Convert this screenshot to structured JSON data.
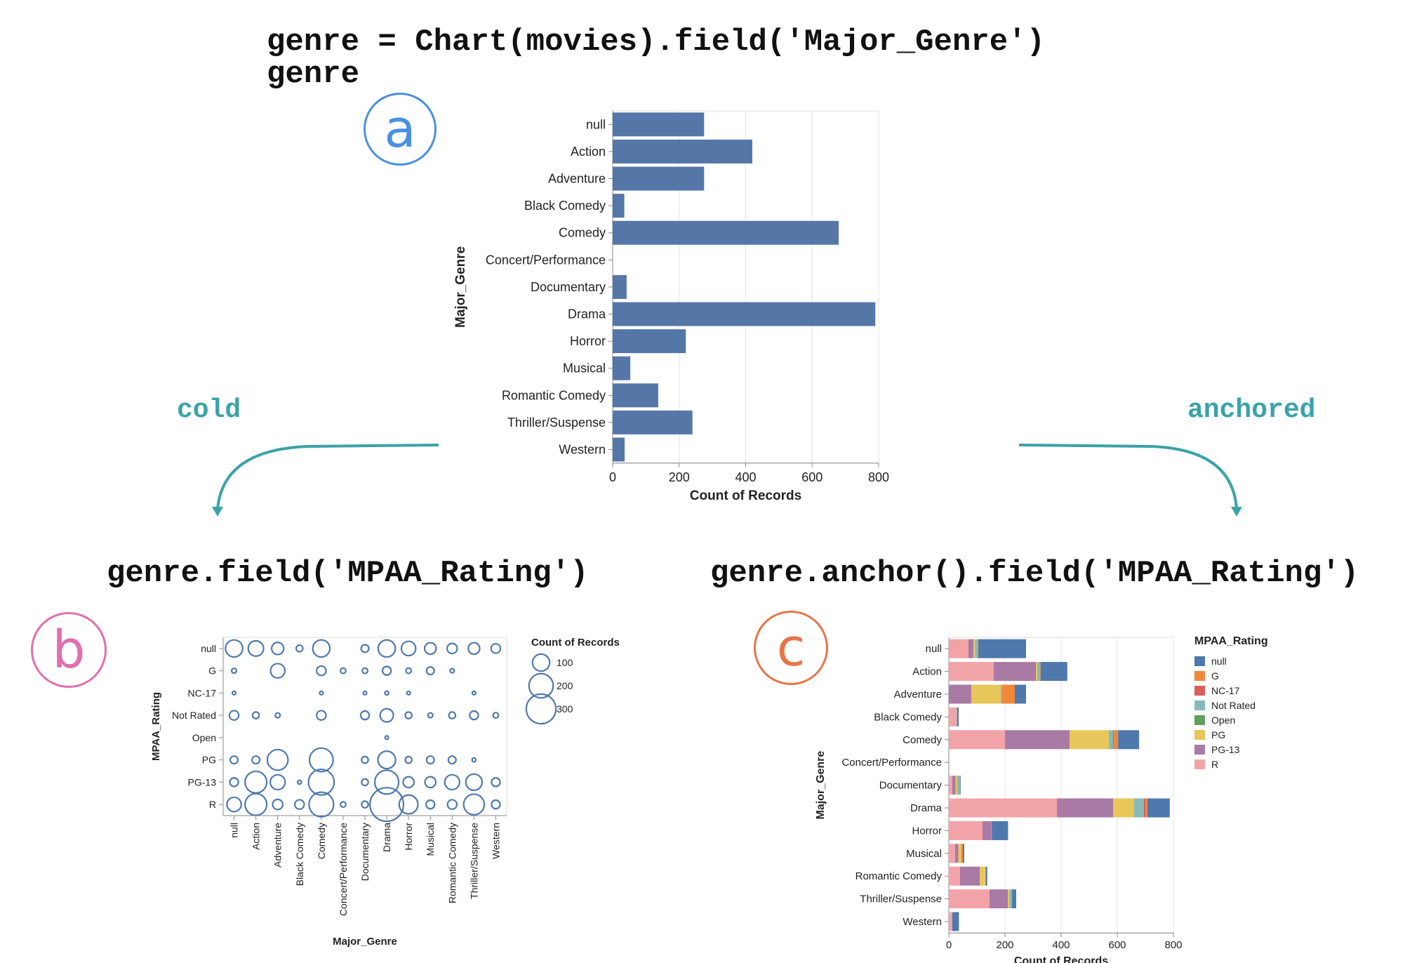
{
  "code": {
    "line1": "genre = Chart(movies).field('Major_Genre')",
    "line2": "genre",
    "left": "genre.field('MPAA_Rating')",
    "right": "genre.anchor().field('MPAA_Rating')"
  },
  "labels": {
    "a": "a",
    "b": "b",
    "c": "c",
    "cold": "cold",
    "anchored": "anchored"
  },
  "colors": {
    "bar": "#5577a8",
    "teal": "#3aa3a8",
    "circle_a": "#4a90e2",
    "circle_b": "#e06fb0",
    "circle_c": "#e8744a"
  },
  "chart_data": [
    {
      "type": "bar",
      "orientation": "horizontal",
      "categories": [
        "null",
        "Action",
        "Adventure",
        "Black Comedy",
        "Comedy",
        "Concert/Performance",
        "Documentary",
        "Drama",
        "Horror",
        "Musical",
        "Romantic Comedy",
        "Thriller/Suspense",
        "Western"
      ],
      "values": [
        275,
        420,
        275,
        35,
        680,
        0,
        42,
        790,
        220,
        53,
        137,
        240,
        36
      ],
      "xlabel": "Count of Records",
      "ylabel": "Major_Genre",
      "xticks": [
        "0",
        "200",
        "400",
        "600",
        "800"
      ],
      "xlim": [
        0,
        800
      ],
      "grid": true
    },
    {
      "type": "scatter",
      "encoding": "size",
      "x_categories": [
        "null",
        "Action",
        "Adventure",
        "Black Comedy",
        "Comedy",
        "Concert/Performance",
        "Documentary",
        "Drama",
        "Horror",
        "Musical",
        "Romantic Comedy",
        "Thriller/Suspense",
        "Western"
      ],
      "y_categories": [
        "null",
        "G",
        "NC-17",
        "Not Rated",
        "Open",
        "PG",
        "PG-13",
        "R"
      ],
      "xlabel": "Major_Genre",
      "ylabel": "MPAA_Rating",
      "legend_title": "Count of Records",
      "legend_values": [
        "100",
        "200",
        "300"
      ],
      "legend_position": "right",
      "points": [
        [
          0,
          0,
          100
        ],
        [
          1,
          0,
          80
        ],
        [
          2,
          0,
          50
        ],
        [
          3,
          0,
          15
        ],
        [
          4,
          0,
          100
        ],
        [
          6,
          0,
          20
        ],
        [
          7,
          0,
          100
        ],
        [
          8,
          0,
          70
        ],
        [
          9,
          0,
          45
        ],
        [
          10,
          0,
          35
        ],
        [
          11,
          0,
          45
        ],
        [
          12,
          0,
          30
        ],
        [
          0,
          1,
          8
        ],
        [
          2,
          1,
          70
        ],
        [
          4,
          1,
          30
        ],
        [
          5,
          1,
          10
        ],
        [
          6,
          1,
          10
        ],
        [
          7,
          1,
          25
        ],
        [
          8,
          1,
          10
        ],
        [
          9,
          1,
          20
        ],
        [
          10,
          1,
          6
        ],
        [
          0,
          2,
          3
        ],
        [
          4,
          2,
          3
        ],
        [
          6,
          2,
          3
        ],
        [
          7,
          2,
          5
        ],
        [
          8,
          2,
          3
        ],
        [
          11,
          2,
          3
        ],
        [
          0,
          3,
          30
        ],
        [
          1,
          3,
          15
        ],
        [
          2,
          3,
          8
        ],
        [
          4,
          3,
          30
        ],
        [
          6,
          3,
          25
        ],
        [
          7,
          3,
          60
        ],
        [
          8,
          3,
          15
        ],
        [
          9,
          3,
          8
        ],
        [
          10,
          3,
          15
        ],
        [
          11,
          3,
          25
        ],
        [
          12,
          3,
          10
        ],
        [
          7,
          4,
          4
        ],
        [
          0,
          5,
          20
        ],
        [
          1,
          5,
          20
        ],
        [
          2,
          5,
          145
        ],
        [
          4,
          5,
          190
        ],
        [
          6,
          5,
          15
        ],
        [
          7,
          5,
          105
        ],
        [
          8,
          5,
          15
        ],
        [
          9,
          5,
          20
        ],
        [
          10,
          5,
          20
        ],
        [
          11,
          5,
          5
        ],
        [
          0,
          6,
          25
        ],
        [
          1,
          6,
          160
        ],
        [
          2,
          6,
          75
        ],
        [
          3,
          6,
          5
        ],
        [
          4,
          6,
          225
        ],
        [
          6,
          6,
          15
        ],
        [
          7,
          6,
          195
        ],
        [
          8,
          6,
          40
        ],
        [
          9,
          6,
          40
        ],
        [
          10,
          6,
          75
        ],
        [
          11,
          6,
          90
        ],
        [
          12,
          6,
          25
        ],
        [
          0,
          7,
          70
        ],
        [
          1,
          7,
          160
        ],
        [
          2,
          7,
          35
        ],
        [
          3,
          7,
          30
        ],
        [
          4,
          7,
          205
        ],
        [
          5,
          7,
          10
        ],
        [
          6,
          7,
          15
        ],
        [
          7,
          7,
          385
        ],
        [
          8,
          7,
          120
        ],
        [
          9,
          7,
          25
        ],
        [
          10,
          7,
          30
        ],
        [
          11,
          7,
          145
        ],
        [
          12,
          7,
          25
        ]
      ]
    },
    {
      "type": "bar",
      "stacked": true,
      "orientation": "horizontal",
      "categories": [
        "null",
        "Action",
        "Adventure",
        "Black Comedy",
        "Comedy",
        "Concert/Performance",
        "Documentary",
        "Drama",
        "Horror",
        "Musical",
        "Romantic Comedy",
        "Thriller/Suspense",
        "Western"
      ],
      "xlabel": "Count of Records",
      "ylabel": "Major_Genre",
      "xticks": [
        "0",
        "200",
        "400",
        "600",
        "800"
      ],
      "xlim": [
        0,
        800
      ],
      "legend_title": "MPAA_Rating",
      "legend_position": "right",
      "series": [
        {
          "name": "R",
          "color": "#f2a3a8",
          "values": [
            70,
            160,
            0,
            28,
            200,
            0,
            12,
            385,
            120,
            22,
            40,
            145,
            12
          ]
        },
        {
          "name": "PG-13",
          "color": "#a97aa4",
          "values": [
            18,
            150,
            80,
            0,
            230,
            0,
            12,
            200,
            30,
            12,
            70,
            65,
            0
          ]
        },
        {
          "name": "PG",
          "color": "#e8c75a",
          "values": [
            5,
            5,
            105,
            0,
            140,
            0,
            6,
            75,
            0,
            10,
            20,
            5,
            0
          ]
        },
        {
          "name": "Open",
          "color": "#5fa05a",
          "values": [
            0,
            0,
            0,
            0,
            0,
            0,
            0,
            0,
            0,
            0,
            0,
            0,
            0
          ]
        },
        {
          "name": "Not Rated",
          "color": "#86bcb7",
          "values": [
            10,
            10,
            5,
            2,
            15,
            0,
            8,
            35,
            0,
            0,
            0,
            10,
            0
          ]
        },
        {
          "name": "NC-17",
          "color": "#d95f5f",
          "values": [
            0,
            0,
            0,
            0,
            3,
            0,
            0,
            6,
            0,
            0,
            0,
            0,
            0
          ]
        },
        {
          "name": "G",
          "color": "#f0883a",
          "values": [
            2,
            2,
            45,
            0,
            15,
            0,
            2,
            6,
            3,
            6,
            2,
            0,
            0
          ]
        },
        {
          "name": "null",
          "color": "#4f79ac",
          "values": [
            170,
            95,
            40,
            5,
            75,
            0,
            2,
            80,
            58,
            5,
            5,
            15,
            24
          ]
        }
      ]
    }
  ]
}
